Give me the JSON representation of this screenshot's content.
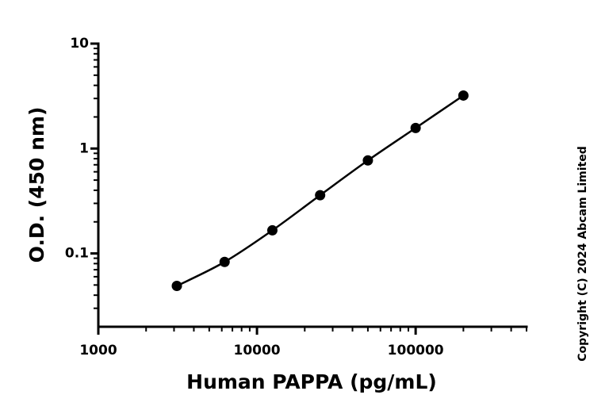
{
  "chart_data": {
    "type": "scatter",
    "x_label": "Human PAPPA (pg/mL)",
    "y_label": "O.D. (450 nm)",
    "annotation": "Copyright (C) 2024 Abcam Limited",
    "x": [
      3125,
      6250,
      12500,
      25000,
      50000,
      100000,
      200000
    ],
    "values": [
      0.049,
      0.083,
      0.166,
      0.359,
      0.77,
      1.57,
      3.2
    ],
    "color": "#000000",
    "xlog": true,
    "ylog": true,
    "xlim": [
      1000,
      500000
    ],
    "ylim": [
      0.02,
      10
    ],
    "xticks": [
      1000,
      10000,
      100000
    ],
    "yticks": [
      0.1,
      1,
      10
    ],
    "curve": true
  }
}
